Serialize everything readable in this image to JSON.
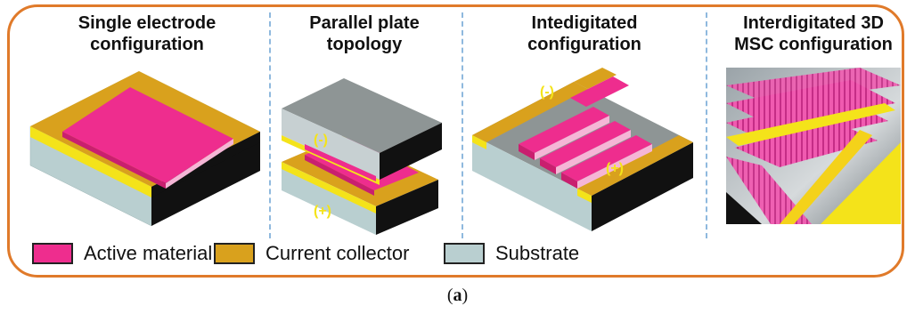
{
  "panels": [
    {
      "title": "Single electrode\nconfiguration"
    },
    {
      "title": "Parallel plate\ntopology",
      "signs": {
        "top": "(-)",
        "bottom": "(+)"
      }
    },
    {
      "title": "Intedigitated\nconfiguration",
      "signs": {
        "top": "(-)",
        "bottom": "(+)"
      }
    },
    {
      "title": "Interdigitated 3D\nMSC configuration"
    }
  ],
  "legend": [
    {
      "label": "Active material",
      "color": "#ee2d8e"
    },
    {
      "label": "Current collector",
      "color": "#d9a11d"
    },
    {
      "label": "Substrate",
      "color": "#b9cfd0"
    }
  ],
  "caption": {
    "open": "(",
    "letter": "a",
    "close": ")"
  },
  "colors": {
    "frame": "#e07a2a",
    "divider": "#8fb9de",
    "active": "#ee2d8e",
    "collector": "#d9a11d",
    "substrate": "#b9cfd0"
  }
}
